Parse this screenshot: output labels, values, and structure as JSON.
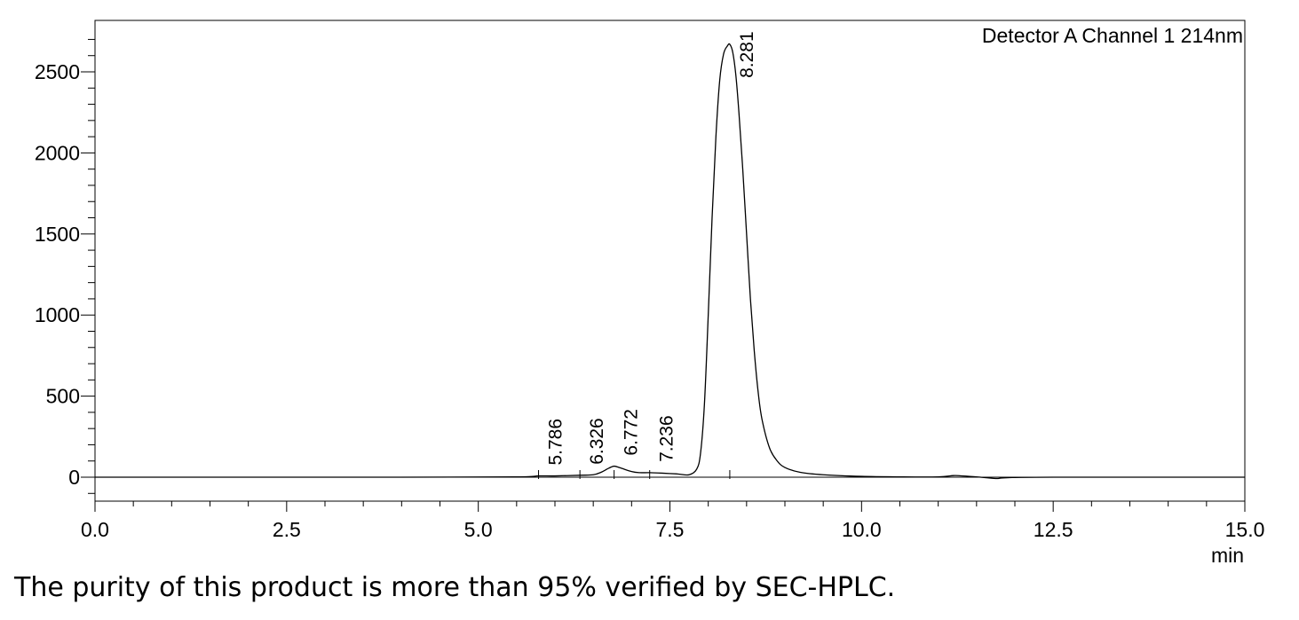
{
  "chart_data": {
    "type": "line",
    "title": "Detector A Channel 1 214nm",
    "xlabel": "min",
    "ylabel": "",
    "xlim": [
      0,
      15
    ],
    "ylim": [
      -150,
      2800
    ],
    "xticks": [
      0,
      2.5,
      5,
      7.5,
      10,
      12.5,
      15
    ],
    "xtick_labels": [
      "0.0",
      "2.5",
      "5.0",
      "7.5",
      "10.0",
      "12.5",
      "15.0"
    ],
    "yticks": [
      0,
      500,
      1000,
      1500,
      2000,
      2500
    ],
    "ytick_labels": [
      "0",
      "500",
      "1000",
      "1500",
      "2000",
      "2500"
    ],
    "grid": false,
    "series": [
      {
        "color": "#000000",
        "x": [
          0,
          4.0,
          5.5,
          5.786,
          6.0,
          6.326,
          6.5,
          6.6,
          6.7,
          6.772,
          6.85,
          7.0,
          7.1,
          7.236,
          7.4,
          7.6,
          7.75,
          7.85,
          7.9,
          7.95,
          8.0,
          8.05,
          8.1,
          8.15,
          8.2,
          8.25,
          8.281,
          8.32,
          8.36,
          8.4,
          8.45,
          8.5,
          8.55,
          8.6,
          8.65,
          8.7,
          8.8,
          8.9,
          9.0,
          9.2,
          9.5,
          10.0,
          10.5,
          11.0,
          11.2,
          11.3,
          11.5,
          11.75,
          11.9,
          12.5,
          15.0
        ],
        "y": [
          0,
          0,
          2,
          8,
          8,
          12,
          15,
          30,
          55,
          68,
          58,
          35,
          28,
          28,
          25,
          20,
          15,
          50,
          150,
          450,
          1000,
          1600,
          2100,
          2450,
          2610,
          2660,
          2670,
          2620,
          2480,
          2250,
          1900,
          1500,
          1100,
          780,
          530,
          360,
          180,
          100,
          60,
          30,
          15,
          5,
          2,
          2,
          10,
          8,
          2,
          -8,
          -3,
          0,
          0
        ]
      }
    ],
    "peaks": [
      {
        "x": 5.786,
        "label": "5.786"
      },
      {
        "x": 6.326,
        "label": "6.326"
      },
      {
        "x": 6.772,
        "label": "6.772"
      },
      {
        "x": 7.236,
        "label": "7.236"
      },
      {
        "x": 8.281,
        "label": "8.281"
      }
    ],
    "legend": "top-right"
  },
  "caption": "The purity of this product is more than 95% verified by SEC-HPLC."
}
